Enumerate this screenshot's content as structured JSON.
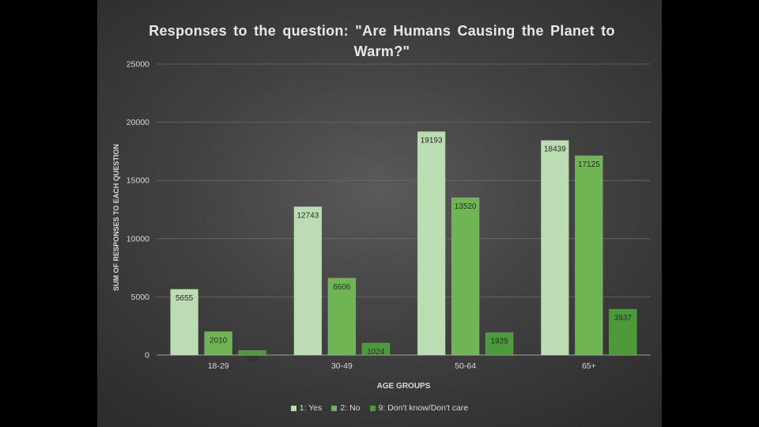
{
  "chart_data": {
    "type": "bar",
    "title": "Responses to the question: \"Are Humans Causing the Planet to Warm?\"",
    "xlabel": "AGE GROUPS",
    "ylabel": "SUM OF RESPONSES TO EACH QUESTION",
    "categories": [
      "18-29",
      "30-49",
      "50-64",
      "65+"
    ],
    "yticks": [
      "0",
      "5000",
      "10000",
      "15000",
      "20000",
      "25000"
    ],
    "ylim": [
      0,
      25000
    ],
    "grid": true,
    "legend": "bottom",
    "series": [
      {
        "name": "1: Yes",
        "color": "#bcdcb3",
        "values": [
          5655,
          12743,
          19193,
          18439
        ]
      },
      {
        "name": "2: No",
        "color": "#6fb553",
        "values": [
          2010,
          6606,
          13520,
          17125
        ]
      },
      {
        "name": "9: Don't know/Don't care",
        "color": "#4c9a3a",
        "values": [
          398,
          1024,
          1925,
          3937
        ]
      }
    ]
  }
}
